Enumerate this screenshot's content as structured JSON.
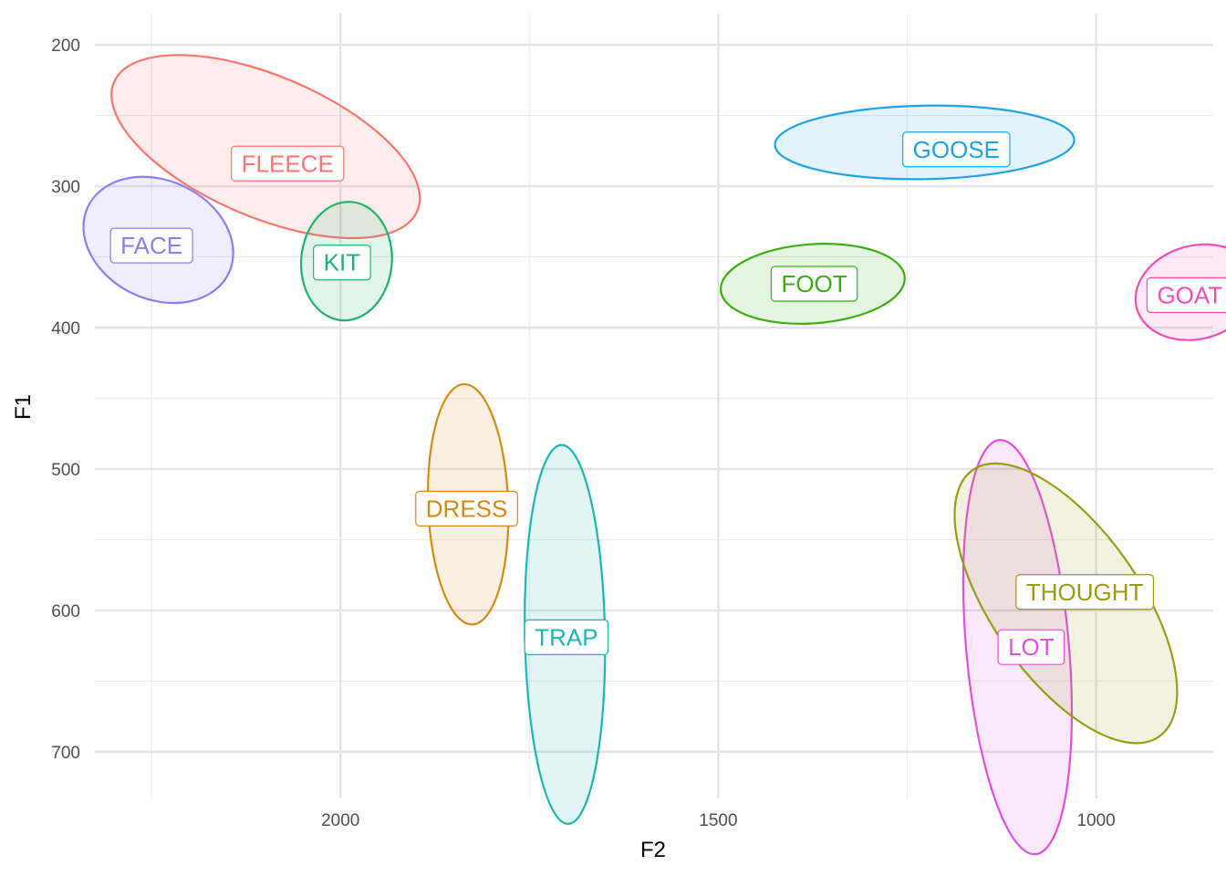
{
  "chart_data": {
    "type": "scatter",
    "title": "",
    "xlabel": "F2",
    "ylabel": "F1",
    "x_reversed": true,
    "y_reversed": true,
    "xlim": [
      2325,
      845
    ],
    "ylim": [
      178,
      733
    ],
    "x_ticks": [
      2000,
      1500,
      1000
    ],
    "y_ticks": [
      200,
      300,
      400,
      500,
      600,
      700
    ],
    "grid": true,
    "legend": "none",
    "series": [
      {
        "name": "FLEECE",
        "color": "#F8766D",
        "label_at": [
          2070,
          284
        ],
        "ellipse": {
          "center": [
            2099,
            272
          ],
          "semi_axes": [
            218,
            50
          ],
          "tilt": 23
        }
      },
      {
        "name": "FACE",
        "color": "#8B7DF6",
        "label_at": [
          2250,
          342
        ],
        "ellipse": {
          "center": [
            2241,
            338
          ],
          "semi_axes": [
            103,
            42
          ],
          "tilt": 25
        }
      },
      {
        "name": "KIT",
        "color": "#1FB36B",
        "label_at": [
          1998,
          354
        ],
        "ellipse": {
          "center": [
            1992,
            353
          ],
          "semi_axes": [
            60,
            42
          ],
          "tilt": 5
        }
      },
      {
        "name": "GOOSE",
        "color": "#1FA1E4",
        "label_at": [
          1185,
          274
        ],
        "ellipse": {
          "center": [
            1227,
            269
          ],
          "semi_axes": [
            198,
            26
          ],
          "tilt": -1
        }
      },
      {
        "name": "FOOT",
        "color": "#3BAE13",
        "label_at": [
          1373,
          369
        ],
        "ellipse": {
          "center": [
            1375,
            369
          ],
          "semi_axes": [
            122,
            28
          ],
          "tilt": -4
        }
      },
      {
        "name": "GOAT",
        "color": "#F24DB2",
        "label_at": [
          876,
          377
        ],
        "ellipse": {
          "center": [
            867,
            375
          ],
          "semi_axes": [
            82,
            33
          ],
          "tilt": -15
        }
      },
      {
        "name": "DRESS",
        "color": "#D18B14",
        "label_at": [
          1833,
          528
        ],
        "ellipse": {
          "center": [
            1831,
            525
          ],
          "semi_axes": [
            53,
            85
          ],
          "tilt": -2
        }
      },
      {
        "name": "TRAP",
        "color": "#1DB5B4",
        "label_at": [
          1701,
          619
        ],
        "ellipse": {
          "center": [
            1703,
            617
          ],
          "semi_axes": [
            53,
            134
          ],
          "tilt": -1
        }
      },
      {
        "name": "LOT",
        "color": "#E24FE0",
        "label_at": [
          1086,
          626
        ],
        "ellipse": {
          "center": [
            1104,
            626
          ],
          "semi_axes": [
            68,
            147
          ],
          "tilt": -5
        }
      },
      {
        "name": "THOUGHT",
        "color": "#9A9A14",
        "label_at": [
          1015,
          587
        ],
        "ellipse": {
          "center": [
            1040,
            595
          ],
          "semi_axes": [
            98,
            115
          ],
          "tilt": -35
        }
      }
    ]
  }
}
